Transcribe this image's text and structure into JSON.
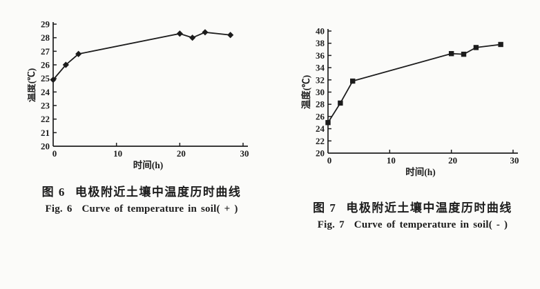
{
  "page": {
    "background": "#fbfbf9",
    "ink": "#1c1c1c"
  },
  "chart_data": [
    {
      "type": "line",
      "fig_label_zh": "图 6",
      "caption_zh": "电极附近土壤中温度历时曲线",
      "fig_label_en": "Fig. 6",
      "caption_en": "Curve of temperature in soil( + )",
      "xlabel": "时间(h)",
      "ylabel": "温度(℃)",
      "x": [
        0,
        2,
        4,
        20,
        22,
        24,
        28
      ],
      "values": [
        24.9,
        26.0,
        26.8,
        28.3,
        28.0,
        28.4,
        28.2
      ],
      "xlim": [
        0,
        30
      ],
      "ylim": [
        20,
        29
      ],
      "xticks": [
        0,
        10,
        20,
        30
      ],
      "yticks": [
        20,
        21,
        22,
        23,
        24,
        25,
        26,
        27,
        28,
        29
      ],
      "marker": "diamond",
      "color": "#1c1c1c",
      "grid": false,
      "legend": "none"
    },
    {
      "type": "line",
      "fig_label_zh": "图 7",
      "caption_zh": "电极附近土壤中温度历时曲线",
      "fig_label_en": "Fig. 7",
      "caption_en": "Curve of temperature in soil( - )",
      "xlabel": "时间(h)",
      "ylabel": "温度(℃)",
      "x": [
        0,
        2,
        4,
        20,
        22,
        24,
        28
      ],
      "values": [
        25.0,
        28.2,
        31.8,
        36.3,
        36.2,
        37.3,
        37.8
      ],
      "xlim": [
        0,
        30
      ],
      "ylim": [
        20,
        40
      ],
      "xticks": [
        0,
        10,
        20,
        30
      ],
      "yticks": [
        20,
        22,
        24,
        26,
        28,
        30,
        32,
        34,
        36,
        38,
        40
      ],
      "marker": "square",
      "color": "#1c1c1c",
      "grid": false,
      "legend": "none"
    }
  ]
}
